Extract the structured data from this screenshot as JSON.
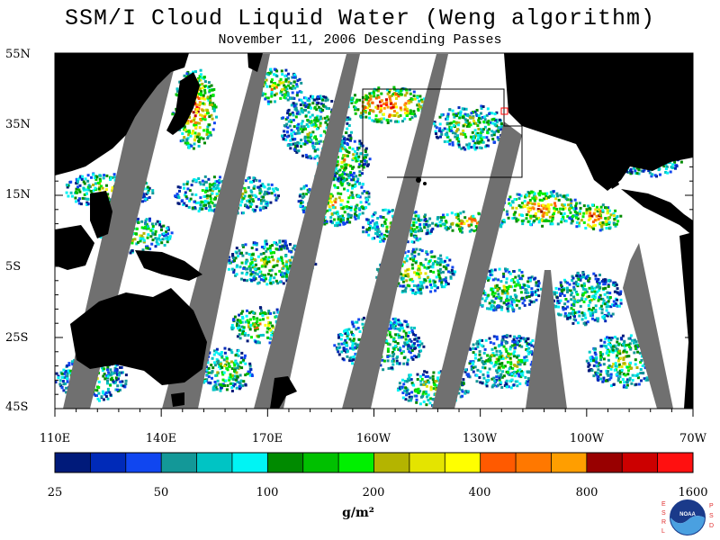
{
  "title": "SSM/I Cloud Liquid Water (Weng algorithm)",
  "subtitle": "November 11, 2006  Descending Passes",
  "lat_labels": [
    "55N",
    "35N",
    "15N",
    "5S",
    "25S",
    "45S"
  ],
  "lon_labels": [
    "110E",
    "140E",
    "170E",
    "160W",
    "130W",
    "100W",
    "70W"
  ],
  "colorbar": {
    "colors": [
      "#001a7a",
      "#002ab8",
      "#1046f0",
      "#139898",
      "#00c4c4",
      "#00f4f4",
      "#008a00",
      "#00c000",
      "#00f000",
      "#b4b400",
      "#e4e400",
      "#ffff00",
      "#ff5a00",
      "#ff7800",
      "#ff9e00",
      "#980000",
      "#cc0000",
      "#ff1010"
    ],
    "tick_labels": [
      "25",
      "50",
      "100",
      "200",
      "400",
      "800",
      "1600"
    ],
    "units": "g/m²"
  },
  "colors": {
    "land": "#000000",
    "missing_swath": "#707070",
    "ocean_clear": "#ffffff"
  },
  "logo": {
    "left_letters": "ESRL",
    "right_letters": "PSD",
    "center_text": "NOAA"
  }
}
